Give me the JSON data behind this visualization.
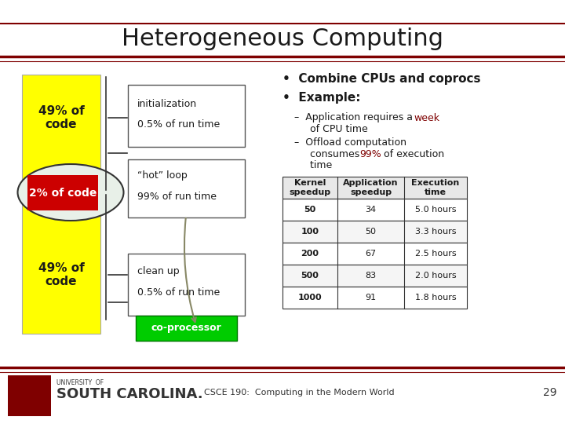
{
  "title": "Heterogeneous Computing",
  "background_color": "#ffffff",
  "title_color": "#000000",
  "dark_red": "#7f0000",
  "bullet_points": [
    "Combine CPUs and coprocs",
    "Example:"
  ],
  "sub_bullets": [
    "Application requires a week\nof CPU time",
    "Offload computation\nconsumes 99% of execution\ntime"
  ],
  "table_headers": [
    "Kernel\nspeedup",
    "Application\nspeedup",
    "Execution\ntime"
  ],
  "table_data": [
    [
      "50",
      "34",
      "5.0 hours"
    ],
    [
      "100",
      "50",
      "3.3 hours"
    ],
    [
      "200",
      "67",
      "2.5 hours"
    ],
    [
      "500",
      "83",
      "2.0 hours"
    ],
    [
      "1000",
      "91",
      "1.8 hours"
    ]
  ],
  "yellow_color": "#ffff00",
  "red_box_color": "#cc0000",
  "green_box_color": "#00cc00",
  "footer_text": "CSCE 190:  Computing in the Modern World",
  "page_num": "29"
}
